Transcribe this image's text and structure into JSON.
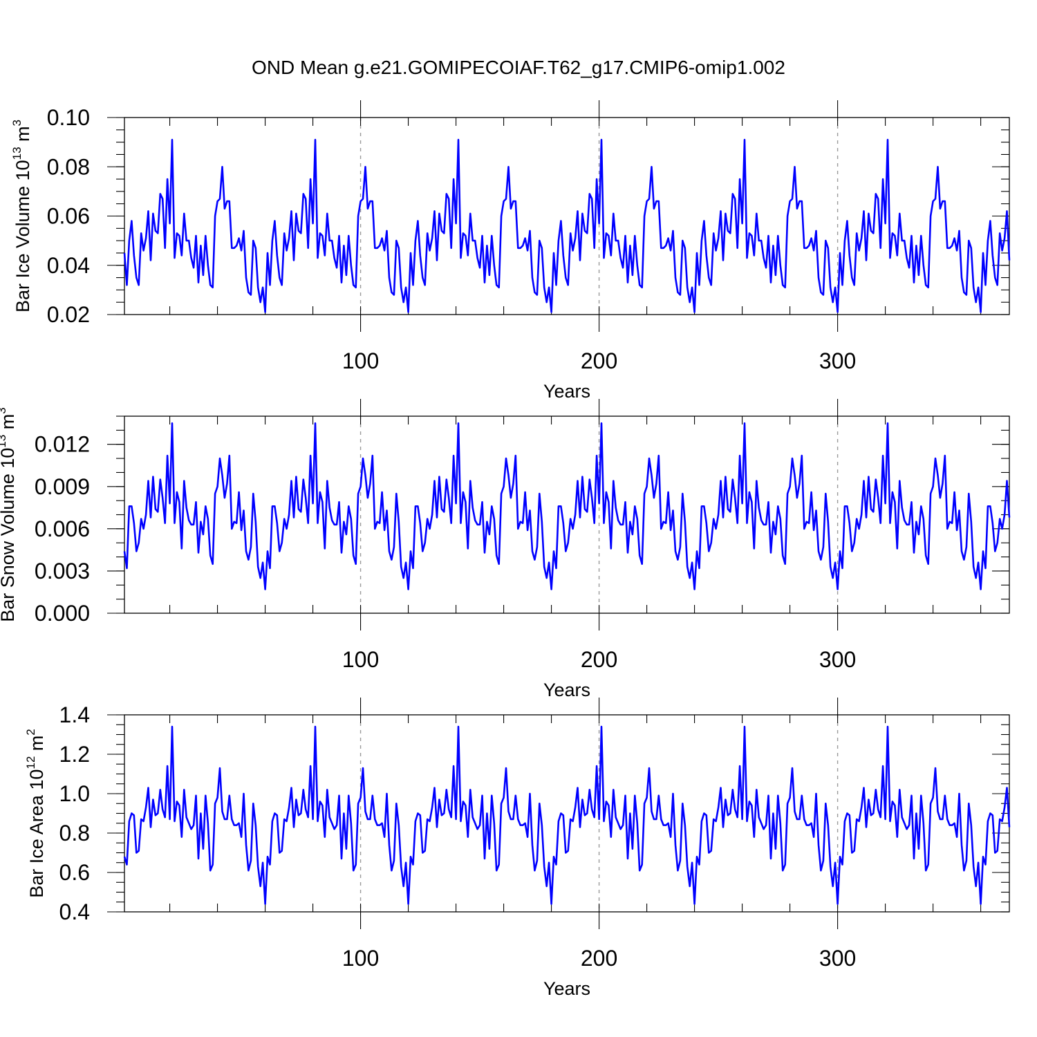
{
  "chart_data": {
    "title": "OND Mean g.e21.GOMIPECOIAF.T62_g17.CMIP6-omip1.002",
    "type": "line",
    "series_color": "#0000ff",
    "xlim": [
      1,
      372
    ],
    "x_ticks": [
      100,
      200,
      300
    ],
    "x_minor_step": 20,
    "ref_lines": [
      100,
      200,
      300
    ],
    "base_cycle": {
      "ice_volume": [
        0.045,
        0.032,
        0.05,
        0.058,
        0.044,
        0.035,
        0.032,
        0.053,
        0.046,
        0.051,
        0.062,
        0.042,
        0.061,
        0.054,
        0.053,
        0.069,
        0.067,
        0.047,
        0.075,
        0.057,
        0.091,
        0.043,
        0.053,
        0.052,
        0.044,
        0.061,
        0.05,
        0.05,
        0.043,
        0.039,
        0.052,
        0.033,
        0.048,
        0.036,
        0.052,
        0.04,
        0.032,
        0.031,
        0.06,
        0.066,
        0.067,
        0.08,
        0.063,
        0.066,
        0.066,
        0.047,
        0.047,
        0.048,
        0.051,
        0.046,
        0.054,
        0.035,
        0.029,
        0.028,
        0.05,
        0.047,
        0.031,
        0.025,
        0.031,
        0.021
      ],
      "snow_volume": [
        0.0044,
        0.0032,
        0.0076,
        0.0076,
        0.0064,
        0.0044,
        0.005,
        0.0067,
        0.006,
        0.007,
        0.0094,
        0.0068,
        0.0097,
        0.0074,
        0.0072,
        0.0095,
        0.0082,
        0.0064,
        0.0112,
        0.0078,
        0.0135,
        0.0064,
        0.0086,
        0.0079,
        0.0046,
        0.0094,
        0.0075,
        0.0066,
        0.0063,
        0.0063,
        0.0079,
        0.0043,
        0.0065,
        0.0056,
        0.0076,
        0.0067,
        0.0041,
        0.0035,
        0.0085,
        0.009,
        0.011,
        0.0098,
        0.0082,
        0.0092,
        0.0112,
        0.006,
        0.0065,
        0.0064,
        0.0086,
        0.0059,
        0.0073,
        0.0044,
        0.0038,
        0.0047,
        0.0085,
        0.0065,
        0.0033,
        0.0025,
        0.0036,
        0.0017
      ],
      "ice_area": [
        0.68,
        0.64,
        0.86,
        0.9,
        0.89,
        0.7,
        0.71,
        0.87,
        0.86,
        0.93,
        1.03,
        0.83,
        0.97,
        0.89,
        0.9,
        1.02,
        0.92,
        0.88,
        1.14,
        0.87,
        1.34,
        0.86,
        0.96,
        0.94,
        0.78,
        1.02,
        0.88,
        0.85,
        0.82,
        0.84,
        0.99,
        0.67,
        0.9,
        0.72,
        0.99,
        0.85,
        0.61,
        0.64,
        0.95,
        0.98,
        1.13,
        0.91,
        0.87,
        0.87,
        0.99,
        0.87,
        0.84,
        0.84,
        0.85,
        0.78,
        1.0,
        0.74,
        0.61,
        0.66,
        0.95,
        0.84,
        0.63,
        0.53,
        0.65,
        0.44
      ]
    },
    "panels": [
      {
        "key": "ice_volume",
        "ylabel_main": "Bar Ice Volume 10",
        "ylabel_exp": "13",
        "ylabel_unit": " m",
        "ylabel_unit_exp": "3",
        "xlabel": "Years",
        "ylim": [
          0.02,
          0.1
        ],
        "y_ticks": [
          "0.02",
          "0.04",
          "0.06",
          "0.08",
          "0.10"
        ],
        "y_tick_values": [
          0.02,
          0.04,
          0.06,
          0.08,
          0.1
        ],
        "y_minor_step": 0.005,
        "x_tick_labels": [
          "100",
          "200",
          "300"
        ]
      },
      {
        "key": "snow_volume",
        "ylabel_main": "Bar Snow Volume 10",
        "ylabel_exp": "13",
        "ylabel_unit": " m",
        "ylabel_unit_exp": "3",
        "xlabel": "Years",
        "ylim": [
          0.0,
          0.014
        ],
        "y_ticks": [
          "0.000",
          "0.003",
          "0.006",
          "0.009",
          "0.012"
        ],
        "y_tick_values": [
          0.0,
          0.003,
          0.006,
          0.009,
          0.012
        ],
        "y_minor_step": 0.001,
        "x_tick_labels": [
          "100",
          "200",
          "300"
        ]
      },
      {
        "key": "ice_area",
        "ylabel_main": "Bar Ice Area 10",
        "ylabel_exp": "12",
        "ylabel_unit": " m",
        "ylabel_unit_exp": "2",
        "xlabel": "Years",
        "ylim": [
          0.4,
          1.4
        ],
        "y_ticks": [
          "0.4",
          "0.6",
          "0.8",
          "1.0",
          "1.2",
          "1.4"
        ],
        "y_tick_values": [
          0.4,
          0.6,
          0.8,
          1.0,
          1.2,
          1.4
        ],
        "y_minor_step": 0.05,
        "x_tick_labels": [
          "100",
          "200",
          "300"
        ]
      }
    ]
  }
}
